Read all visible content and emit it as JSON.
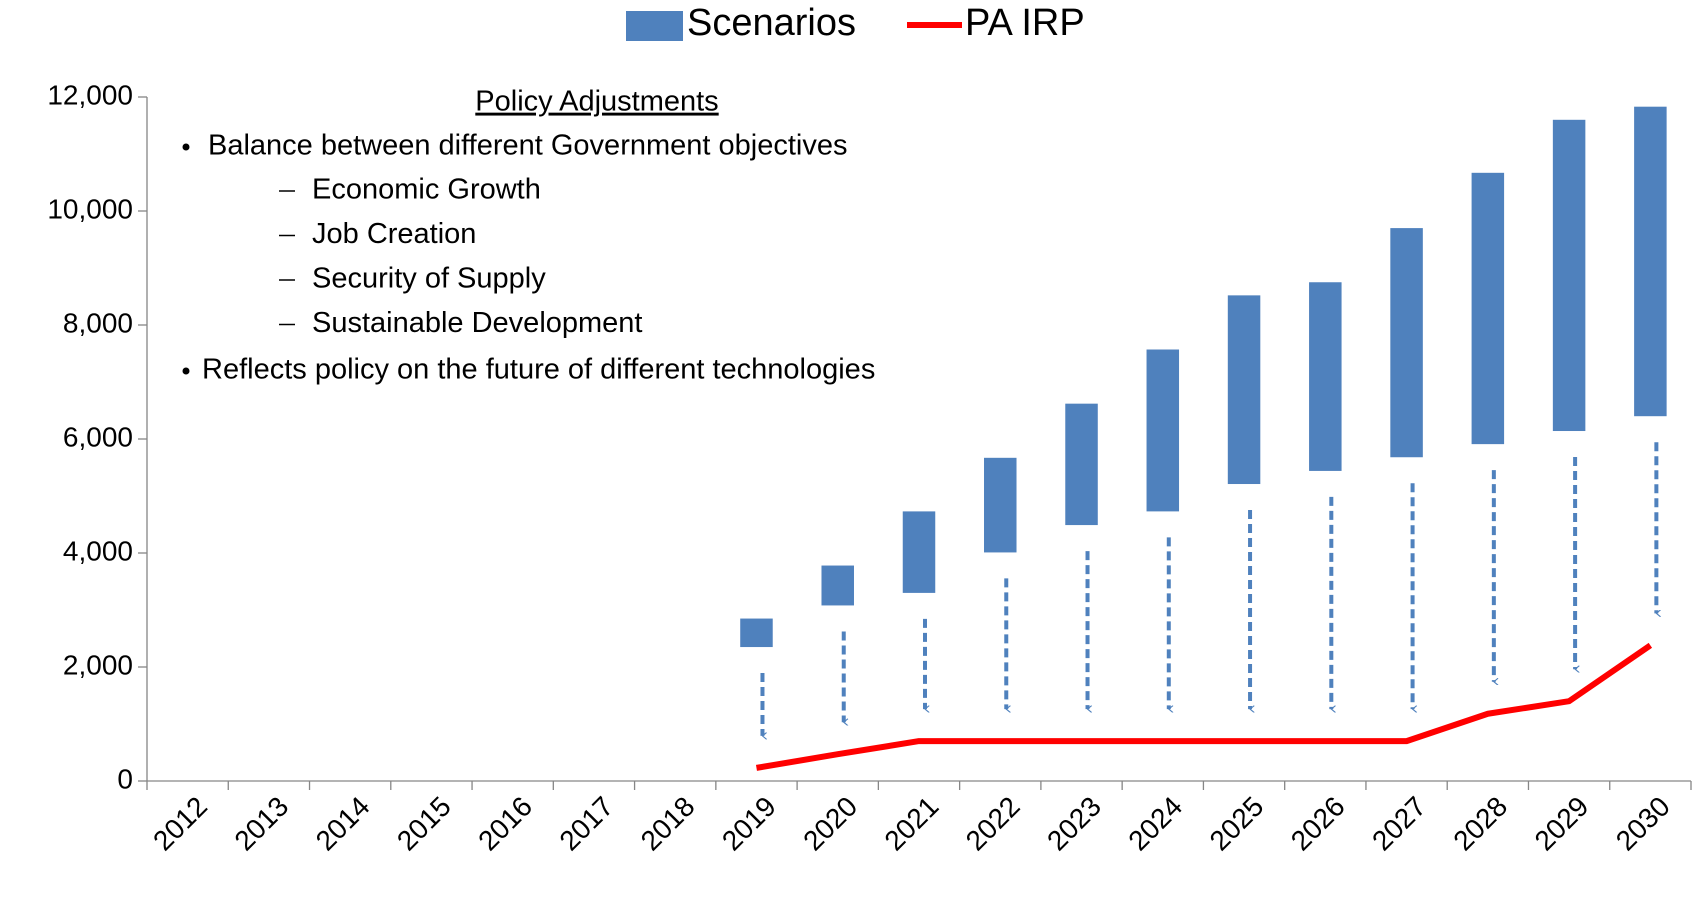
{
  "chart_data": {
    "type": "range_bar_line",
    "categories": [
      "2012",
      "2013",
      "2014",
      "2015",
      "2016",
      "2017",
      "2018",
      "2019",
      "2020",
      "2021",
      "2022",
      "2023",
      "2024",
      "2025",
      "2026",
      "2027",
      "2028",
      "2029",
      "2030"
    ],
    "series": [
      {
        "name": "Scenarios",
        "color": "#4f81bd",
        "low": [
          null,
          null,
          null,
          null,
          null,
          null,
          null,
          2350,
          3080,
          3300,
          4010,
          4490,
          4730,
          5210,
          5440,
          5680,
          5910,
          6140,
          6400
        ],
        "high": [
          null,
          null,
          null,
          null,
          null,
          null,
          null,
          2850,
          3780,
          4730,
          5670,
          6620,
          7570,
          8520,
          8750,
          9700,
          10670,
          11600,
          11830
        ]
      },
      {
        "name": "PA IRP",
        "color": "#ff0000",
        "values": [
          null,
          null,
          null,
          null,
          null,
          null,
          null,
          230,
          470,
          700,
          700,
          700,
          700,
          700,
          700,
          700,
          1180,
          1400,
          2380
        ]
      }
    ],
    "ylim": [
      0,
      12000
    ],
    "yticks": [
      0,
      {
        "value": 2000,
        "label": "2,000"
      },
      {
        "value": 4000,
        "label": "4,000"
      },
      {
        "value": 6000,
        "label": "6,000"
      },
      {
        "value": 8000,
        "label": "8,000"
      },
      {
        "value": 10000,
        "label": "10,000"
      },
      {
        "value": 12000,
        "label": "12,000"
      }
    ],
    "legend": "top",
    "annotation": {
      "heading": "Policy Adjustments",
      "bullets": [
        {
          "text": "Balance between different Government objectives",
          "subitems": [
            "Economic Growth",
            "Job Creation",
            "Security of Supply",
            "Sustainable Development"
          ]
        },
        {
          "text": "Reflects policy on the future of different technologies"
        }
      ]
    }
  }
}
